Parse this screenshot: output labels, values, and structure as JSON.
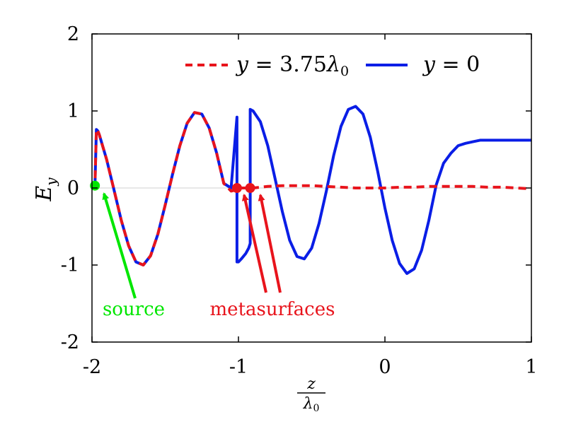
{
  "chart_data": {
    "type": "line",
    "xlabel": {
      "num": "z",
      "den": "λ",
      "den_sub": "0"
    },
    "ylabel": {
      "main": "E",
      "sub": "y"
    },
    "xlim": [
      -2,
      1
    ],
    "ylim": [
      -2,
      2
    ],
    "xticks": [
      -2,
      -1,
      0,
      1
    ],
    "xtick_labels": [
      "-2",
      "-1",
      "0",
      "1"
    ],
    "yticks": [
      -2,
      -1,
      0,
      1,
      2
    ],
    "ytick_labels": [
      "-2",
      "-1",
      "0",
      "1",
      "2"
    ],
    "grid": false,
    "zero_line": true,
    "legend_placement": "top-right",
    "series": [
      {
        "name": "y = 3.75λ0",
        "legend": {
          "lhs": "y",
          "eq": " = 3.75",
          "lam": "λ",
          "sub": "0"
        },
        "color": "#e8141c",
        "dash": "dashed",
        "x": [
          -2.0,
          -1.98,
          -1.97,
          -1.96,
          -1.95,
          -1.9,
          -1.85,
          -1.8,
          -1.75,
          -1.7,
          -1.65,
          -1.6,
          -1.55,
          -1.5,
          -1.45,
          -1.4,
          -1.35,
          -1.3,
          -1.25,
          -1.2,
          -1.15,
          -1.1,
          -1.05,
          -1.01,
          -1.01,
          -1.0,
          -0.95,
          -0.9,
          -0.8,
          -0.7,
          -0.6,
          -0.5,
          -0.4,
          -0.3,
          -0.2,
          -0.1,
          0.0,
          0.1,
          0.2,
          0.3,
          0.4,
          0.5,
          0.6,
          0.7,
          0.8,
          0.9,
          1.0
        ],
        "y": [
          0.0,
          0.0,
          0.76,
          0.74,
          0.69,
          0.37,
          -0.02,
          -0.42,
          -0.75,
          -0.96,
          -1.0,
          -0.88,
          -0.6,
          -0.22,
          0.18,
          0.55,
          0.84,
          0.98,
          0.96,
          0.78,
          0.46,
          0.06,
          -0.04,
          -0.02,
          0.0,
          0.0,
          0.0,
          0.0,
          0.02,
          0.03,
          0.03,
          0.03,
          0.02,
          0.01,
          0.0,
          0.0,
          0.0,
          0.01,
          0.01,
          0.02,
          0.02,
          0.02,
          0.02,
          0.01,
          0.01,
          0.0,
          -0.01
        ]
      },
      {
        "name": "y = 0",
        "legend": {
          "lhs": "y",
          "eq": " = 0"
        },
        "color": "#0a1ee6",
        "dash": "solid",
        "x": [
          -2.0,
          -1.98,
          -1.97,
          -1.96,
          -1.95,
          -1.9,
          -1.85,
          -1.8,
          -1.75,
          -1.7,
          -1.65,
          -1.6,
          -1.55,
          -1.5,
          -1.45,
          -1.4,
          -1.35,
          -1.3,
          -1.25,
          -1.2,
          -1.15,
          -1.1,
          -1.05,
          -1.01,
          -1.01,
          -1.0,
          -0.98,
          -0.95,
          -0.93,
          -0.92,
          -0.92,
          -0.9,
          -0.85,
          -0.8,
          -0.75,
          -0.7,
          -0.65,
          -0.6,
          -0.55,
          -0.5,
          -0.45,
          -0.4,
          -0.35,
          -0.3,
          -0.25,
          -0.2,
          -0.15,
          -0.1,
          -0.05,
          0.0,
          0.05,
          0.1,
          0.15,
          0.2,
          0.25,
          0.3,
          0.35,
          0.4,
          0.45,
          0.5,
          0.55,
          0.6,
          0.65,
          0.7,
          0.75,
          0.8,
          0.85,
          0.9,
          0.95,
          1.0
        ],
        "y": [
          0.0,
          0.0,
          0.76,
          0.74,
          0.69,
          0.37,
          -0.02,
          -0.42,
          -0.75,
          -0.96,
          -1.0,
          -0.88,
          -0.6,
          -0.22,
          0.18,
          0.55,
          0.84,
          0.98,
          0.96,
          0.78,
          0.46,
          0.06,
          0.0,
          0.92,
          -0.96,
          -0.96,
          -0.92,
          -0.85,
          -0.78,
          -0.72,
          1.02,
          1.0,
          0.86,
          0.55,
          0.12,
          -0.31,
          -0.68,
          -0.89,
          -0.92,
          -0.78,
          -0.46,
          -0.04,
          0.42,
          0.8,
          1.02,
          1.06,
          0.96,
          0.66,
          0.22,
          -0.26,
          -0.68,
          -0.98,
          -1.11,
          -1.05,
          -0.81,
          -0.42,
          0.04,
          0.32,
          0.45,
          0.55,
          0.58,
          0.6,
          0.62,
          0.62,
          0.62,
          0.62,
          0.62,
          0.62,
          0.62,
          0.62
        ]
      }
    ],
    "markers": [
      {
        "x": -1.98,
        "y": 0.03,
        "color": "#00e600"
      },
      {
        "x": -1.01,
        "y": 0.0,
        "color": "#e8141c"
      },
      {
        "x": -0.92,
        "y": 0.0,
        "color": "#e8141c"
      }
    ],
    "annotations": [
      {
        "text": "source",
        "color": "#00e600"
      },
      {
        "text": "metasurfaces",
        "color": "#e8141c"
      }
    ]
  }
}
